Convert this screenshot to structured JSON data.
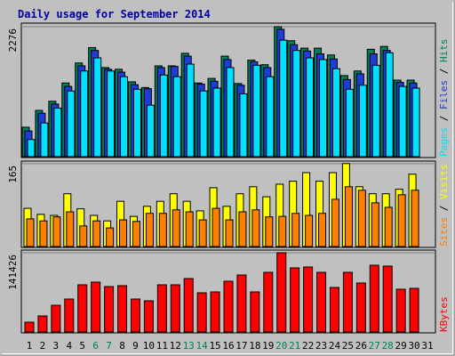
{
  "chart_data": [
    {
      "type": "bar",
      "title": "Daily usage for September 2014",
      "legend_separator": " / ",
      "ylim": [
        0,
        2338
      ],
      "yticks": [
        2276
      ],
      "series": [
        {
          "name": "Hits",
          "color": "#00805c",
          "values": [
            515,
            810,
            970,
            1290,
            1640,
            1910,
            1560,
            1530,
            1310,
            1210,
            1590,
            1590,
            1810,
            1290,
            1370,
            1760,
            1280,
            1690,
            1610,
            2276,
            2030,
            1900,
            1900,
            1780,
            1420,
            1500,
            1880,
            1930,
            1340,
            1340,
            null
          ]
        },
        {
          "name": "Files",
          "color": "#1e3cd8",
          "values": [
            450,
            760,
            920,
            1230,
            1590,
            1860,
            1530,
            1480,
            1260,
            1190,
            1560,
            1580,
            1760,
            1270,
            1320,
            1700,
            1250,
            1660,
            1560,
            2230,
            1960,
            1850,
            1800,
            1710,
            1350,
            1450,
            1800,
            1860,
            1300,
            1290,
            null
          ]
        },
        {
          "name": "Pages",
          "color": "#00e0ff",
          "values": [
            300,
            590,
            850,
            1150,
            1500,
            1730,
            1500,
            1400,
            1180,
            900,
            1430,
            1400,
            1620,
            1150,
            1200,
            1560,
            1100,
            1600,
            1400,
            2040,
            1860,
            1730,
            1700,
            1540,
            1180,
            1250,
            1600,
            1820,
            1230,
            1200,
            null
          ]
        }
      ]
    },
    {
      "type": "bar",
      "legend_separator": " / ",
      "ylim": [
        0,
        170
      ],
      "yticks": [
        165
      ],
      "series": [
        {
          "name": "Visits",
          "color": "#ffff00",
          "values": [
            76,
            64,
            62,
            105,
            75,
            62,
            51,
            90,
            60,
            80,
            90,
            105,
            90,
            71,
            117,
            80,
            105,
            119,
            99,
            124,
            130,
            147,
            130,
            147,
            165,
            119,
            105,
            105,
            114,
            144,
            null
          ]
        },
        {
          "name": "Sites",
          "color": "#ff8000",
          "values": [
            55,
            51,
            59,
            69,
            41,
            51,
            37,
            53,
            50,
            66,
            66,
            73,
            69,
            53,
            76,
            53,
            69,
            73,
            59,
            60,
            66,
            62,
            66,
            94,
            119,
            112,
            87,
            78,
            103,
            112,
            null
          ]
        }
      ]
    },
    {
      "type": "bar",
      "legend_separator": " / ",
      "ylim": [
        0,
        146193
      ],
      "yticks": [
        141426
      ],
      "categories": [
        "1",
        "2",
        "3",
        "4",
        "5",
        "6",
        "7",
        "8",
        "9",
        "10",
        "11",
        "12",
        "13",
        "14",
        "15",
        "16",
        "17",
        "18",
        "19",
        "20",
        "21",
        "22",
        "23",
        "24",
        "25",
        "26",
        "27",
        "28",
        "29",
        "30",
        "31"
      ],
      "category_colors": [
        "#000",
        "#000",
        "#000",
        "#000",
        "#000",
        "#00805c",
        "#00805c",
        "#000",
        "#000",
        "#000",
        "#000",
        "#000",
        "#00805c",
        "#00805c",
        "#000",
        "#000",
        "#000",
        "#000",
        "#000",
        "#00805c",
        "#00805c",
        "#000",
        "#000",
        "#000",
        "#000",
        "#000",
        "#00805c",
        "#00805c",
        "#000",
        "#000",
        "#000"
      ],
      "series": [
        {
          "name": "KBytes",
          "color": "#ff0000",
          "values": [
            17480,
            28600,
            47670,
            58790,
            84220,
            88990,
            81040,
            82630,
            58790,
            55620,
            84220,
            84220,
            95340,
            69920,
            71510,
            90570,
            101700,
            71510,
            106460,
            141426,
            114410,
            116000,
            106460,
            79450,
            106460,
            87400,
            119180,
            117590,
            76270,
            77860,
            null
          ]
        }
      ]
    }
  ]
}
